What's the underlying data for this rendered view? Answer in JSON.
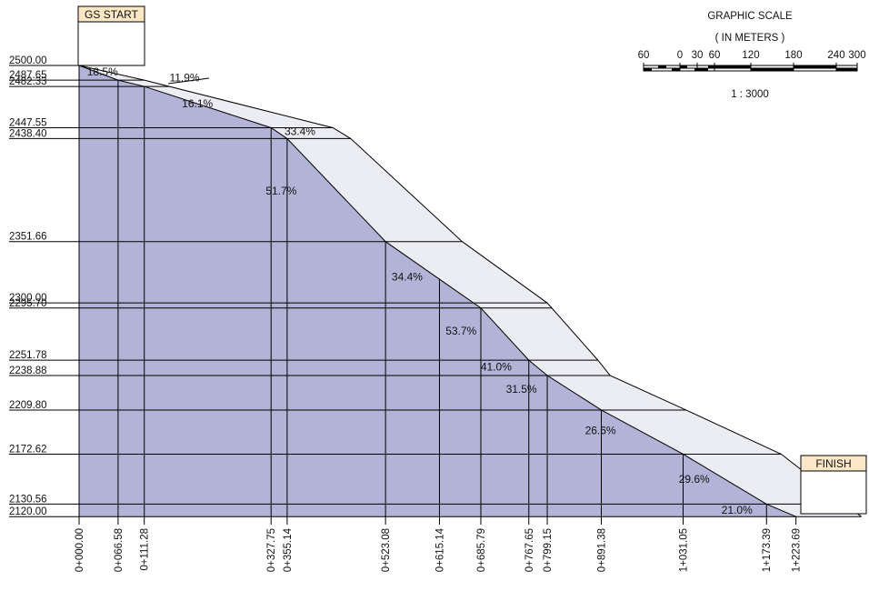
{
  "start_label": "GS START",
  "finish_label": "FINISH",
  "scale": {
    "title": "GRAPHIC SCALE",
    "units": "( IN METERS )",
    "ratio": "1 : 3000",
    "ticks": [
      "60",
      "0",
      "30",
      "60",
      "120",
      "180",
      "240",
      "300"
    ]
  },
  "colors": {
    "ground_fill": "#b1b3d7",
    "band_fill": "#ececf3",
    "label_box": "#fbe6c5",
    "line": "#000000"
  },
  "elevations": [
    "2500.00",
    "2487.65",
    "2482.33",
    "2447.55",
    "2438.40",
    "2351.66",
    "2300.00",
    "2295.70",
    "2251.78",
    "2238.88",
    "2209.80",
    "2172.62",
    "2130.56",
    "2120.00"
  ],
  "stations": [
    "0+000.00",
    "0+066.58",
    "0+111.28",
    "0+327.75",
    "0+355.14",
    "0+523.08",
    "0+615.14",
    "0+685.79",
    "0+767.65",
    "0+799.15",
    "0+891.38",
    "1+031.05",
    "1+173.39",
    "1+223.69"
  ],
  "profile_points": [
    {
      "station": 0,
      "elev": 2500.0
    },
    {
      "station": 66.58,
      "elev": 2487.65
    },
    {
      "station": 111.28,
      "elev": 2482.33
    },
    {
      "station": 327.75,
      "elev": 2447.55
    },
    {
      "station": 355.14,
      "elev": 2438.4
    },
    {
      "station": 523.08,
      "elev": 2351.66
    },
    {
      "station": 685.79,
      "elev": 2295.7
    },
    {
      "station": 767.65,
      "elev": 2251.78
    },
    {
      "station": 799.15,
      "elev": 2238.88
    },
    {
      "station": 891.38,
      "elev": 2209.8
    },
    {
      "station": 1031.05,
      "elev": 2172.62
    },
    {
      "station": 1173.39,
      "elev": 2130.56
    },
    {
      "station": 1223.69,
      "elev": 2120.0
    }
  ],
  "upper_points": [
    {
      "station": 0,
      "elev": 2500.0
    },
    {
      "station": 111.28,
      "elev": 2487.65
    },
    {
      "station": 433.2,
      "elev": 2447.55
    },
    {
      "station": 463.6,
      "elev": 2438.4
    },
    {
      "station": 653.9,
      "elev": 2351.66
    },
    {
      "station": 799.15,
      "elev": 2300.0
    },
    {
      "station": 885.6,
      "elev": 2251.78
    },
    {
      "station": 906.4,
      "elev": 2238.88
    },
    {
      "station": 1036.0,
      "elev": 2209.8
    },
    {
      "station": 1198.6,
      "elev": 2172.62
    },
    {
      "station": 1335.3,
      "elev": 2120.0
    }
  ],
  "grade_labels": [
    {
      "text": "18.5%",
      "station": 40,
      "elev": 2491.4
    },
    {
      "text": "11.9%",
      "station": 180,
      "elev": 2486.6
    },
    {
      "text": "16.1%",
      "station": 202,
      "elev": 2464.7
    },
    {
      "text": "33.4%",
      "station": 377,
      "elev": 2441.5
    },
    {
      "text": "51.7%",
      "station": 345,
      "elev": 2391.4
    },
    {
      "text": "34.4%",
      "station": 560,
      "elev": 2318.8
    },
    {
      "text": "53.7%",
      "station": 652,
      "elev": 2273.5
    },
    {
      "text": "41.0%",
      "station": 712,
      "elev": 2242.9
    },
    {
      "text": "31.5%",
      "station": 755,
      "elev": 2224.3
    },
    {
      "text": "26.6%",
      "station": 890,
      "elev": 2189.6
    },
    {
      "text": "29.6%",
      "station": 1050,
      "elev": 2148.6
    },
    {
      "text": "21.0%",
      "station": 1123,
      "elev": 2122.6
    }
  ]
}
